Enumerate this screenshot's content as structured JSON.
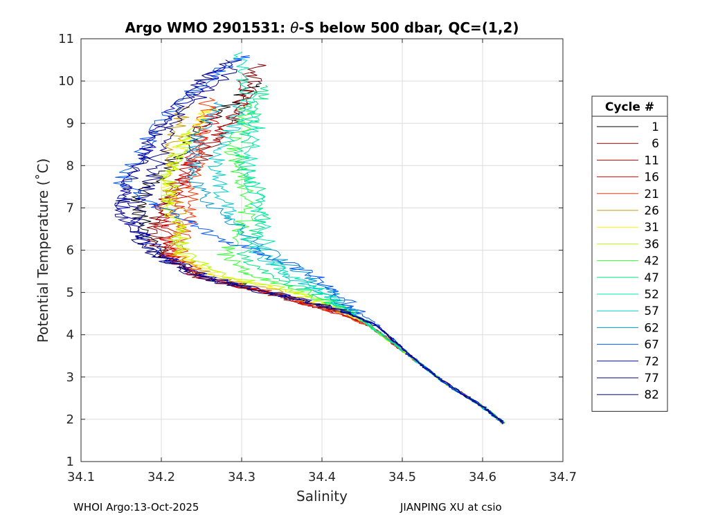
{
  "chart_data": {
    "type": "line",
    "title_prefix": "Argo WMO 2901531: ",
    "title_symbol": "θ",
    "title_suffix": "-S below 500 dbar,  QC=(1,2)",
    "xlabel": "Salinity",
    "ylabel": "Potential Temperature (˚C)",
    "xlim": [
      34.1,
      34.7
    ],
    "ylim": [
      1,
      11
    ],
    "xticks": [
      34.1,
      34.2,
      34.3,
      34.4,
      34.5,
      34.6,
      34.7
    ],
    "xtick_labels": [
      "34.1",
      "34.2",
      "34.3",
      "34.4",
      "34.5",
      "34.6",
      "34.7"
    ],
    "yticks": [
      1,
      2,
      3,
      4,
      5,
      6,
      7,
      8,
      9,
      10,
      11
    ],
    "ytick_labels": [
      "1",
      "2",
      "3",
      "4",
      "5",
      "6",
      "7",
      "8",
      "9",
      "10",
      "11"
    ],
    "grid": true,
    "legend_title": "Cycle #",
    "legend_position": "right-outside",
    "series": [
      {
        "name": "1",
        "color": "#000000",
        "points": [
          [
            34.627,
            1.9
          ],
          [
            34.6,
            2.3
          ],
          [
            34.55,
            2.9
          ],
          [
            34.51,
            3.5
          ],
          [
            34.47,
            4.2
          ],
          [
            34.42,
            4.6
          ],
          [
            34.34,
            5.0
          ],
          [
            34.25,
            5.4
          ],
          [
            34.2,
            5.9
          ],
          [
            34.18,
            6.5
          ],
          [
            34.17,
            7.1
          ],
          [
            34.19,
            7.6
          ],
          [
            34.22,
            8.2
          ],
          [
            34.25,
            8.9
          ],
          [
            34.29,
            9.5
          ],
          [
            34.32,
            10.0
          ]
        ]
      },
      {
        "name": "6",
        "color": "#800000",
        "points": [
          [
            34.627,
            1.9
          ],
          [
            34.6,
            2.3
          ],
          [
            34.55,
            2.9
          ],
          [
            34.51,
            3.5
          ],
          [
            34.46,
            4.2
          ],
          [
            34.41,
            4.6
          ],
          [
            34.33,
            5.0
          ],
          [
            34.24,
            5.4
          ],
          [
            34.2,
            5.9
          ],
          [
            34.19,
            6.5
          ],
          [
            34.2,
            7.1
          ],
          [
            34.23,
            7.7
          ],
          [
            34.26,
            8.4
          ],
          [
            34.29,
            9.1
          ],
          [
            34.31,
            9.8
          ],
          [
            34.32,
            10.4
          ]
        ]
      },
      {
        "name": "11",
        "color": "#b30000",
        "points": [
          [
            34.627,
            1.9
          ],
          [
            34.6,
            2.3
          ],
          [
            34.55,
            2.9
          ],
          [
            34.51,
            3.5
          ],
          [
            34.46,
            4.2
          ],
          [
            34.41,
            4.6
          ],
          [
            34.33,
            5.0
          ],
          [
            34.24,
            5.4
          ],
          [
            34.21,
            5.9
          ],
          [
            34.2,
            6.5
          ],
          [
            34.2,
            7.0
          ],
          [
            34.22,
            7.6
          ],
          [
            34.25,
            8.3
          ],
          [
            34.28,
            8.9
          ],
          [
            34.3,
            9.5
          ],
          [
            34.31,
            10.2
          ]
        ]
      },
      {
        "name": "16",
        "color": "#e60000",
        "points": [
          [
            34.627,
            1.9
          ],
          [
            34.6,
            2.3
          ],
          [
            34.55,
            2.9
          ],
          [
            34.51,
            3.5
          ],
          [
            34.46,
            4.2
          ],
          [
            34.41,
            4.6
          ],
          [
            34.33,
            5.0
          ],
          [
            34.24,
            5.4
          ],
          [
            34.21,
            5.9
          ],
          [
            34.21,
            6.5
          ],
          [
            34.22,
            7.1
          ],
          [
            34.23,
            7.7
          ],
          [
            34.24,
            8.3
          ],
          [
            34.26,
            8.9
          ],
          [
            34.26,
            9.4
          ]
        ]
      },
      {
        "name": "21",
        "color": "#ff3300",
        "points": [
          [
            34.627,
            1.9
          ],
          [
            34.6,
            2.3
          ],
          [
            34.55,
            2.9
          ],
          [
            34.51,
            3.5
          ],
          [
            34.46,
            4.2
          ],
          [
            34.41,
            4.6
          ],
          [
            34.34,
            5.0
          ],
          [
            34.25,
            5.4
          ],
          [
            34.22,
            5.9
          ],
          [
            34.23,
            6.5
          ],
          [
            34.24,
            7.1
          ],
          [
            34.24,
            7.7
          ],
          [
            34.25,
            8.3
          ],
          [
            34.25,
            8.9
          ],
          [
            34.26,
            9.6
          ]
        ]
      },
      {
        "name": "26",
        "color": "#cc9900",
        "points": [
          [
            34.627,
            1.9
          ],
          [
            34.6,
            2.3
          ],
          [
            34.55,
            2.9
          ],
          [
            34.51,
            3.5
          ],
          [
            34.46,
            4.2
          ],
          [
            34.42,
            4.6
          ],
          [
            34.35,
            5.0
          ],
          [
            34.26,
            5.4
          ],
          [
            34.22,
            5.9
          ],
          [
            34.22,
            6.5
          ],
          [
            34.22,
            7.1
          ],
          [
            34.21,
            7.7
          ],
          [
            34.21,
            8.3
          ],
          [
            34.22,
            8.9
          ],
          [
            34.23,
            9.4
          ]
        ]
      },
      {
        "name": "31",
        "color": "#ffee00",
        "points": [
          [
            34.627,
            1.9
          ],
          [
            34.6,
            2.3
          ],
          [
            34.55,
            2.9
          ],
          [
            34.51,
            3.5
          ],
          [
            34.46,
            4.2
          ],
          [
            34.42,
            4.6
          ],
          [
            34.36,
            5.0
          ],
          [
            34.27,
            5.4
          ],
          [
            34.22,
            5.9
          ],
          [
            34.22,
            6.5
          ],
          [
            34.21,
            7.1
          ],
          [
            34.21,
            7.7
          ],
          [
            34.22,
            8.3
          ],
          [
            34.24,
            8.9
          ],
          [
            34.26,
            9.4
          ]
        ]
      },
      {
        "name": "36",
        "color": "#b3ff00",
        "points": [
          [
            34.627,
            1.9
          ],
          [
            34.6,
            2.3
          ],
          [
            34.55,
            2.9
          ],
          [
            34.51,
            3.5
          ],
          [
            34.46,
            4.2
          ],
          [
            34.43,
            4.6
          ],
          [
            34.37,
            5.0
          ],
          [
            34.28,
            5.4
          ],
          [
            34.23,
            5.9
          ],
          [
            34.22,
            6.5
          ],
          [
            34.21,
            7.1
          ],
          [
            34.21,
            7.7
          ],
          [
            34.22,
            8.3
          ],
          [
            34.24,
            8.9
          ]
        ]
      },
      {
        "name": "42",
        "color": "#33ff33",
        "points": [
          [
            34.627,
            1.9
          ],
          [
            34.6,
            2.3
          ],
          [
            34.55,
            2.9
          ],
          [
            34.51,
            3.5
          ],
          [
            34.46,
            4.2
          ],
          [
            34.43,
            4.6
          ],
          [
            34.38,
            5.0
          ],
          [
            34.31,
            5.4
          ],
          [
            34.28,
            5.9
          ],
          [
            34.3,
            6.5
          ],
          [
            34.31,
            7.1
          ],
          [
            34.3,
            7.7
          ],
          [
            34.29,
            8.3
          ],
          [
            34.3,
            8.9
          ],
          [
            34.31,
            9.5
          ]
        ]
      },
      {
        "name": "47",
        "color": "#00e680",
        "points": [
          [
            34.627,
            1.9
          ],
          [
            34.6,
            2.3
          ],
          [
            34.55,
            2.9
          ],
          [
            34.51,
            3.5
          ],
          [
            34.46,
            4.2
          ],
          [
            34.43,
            4.6
          ],
          [
            34.39,
            5.0
          ],
          [
            34.33,
            5.4
          ],
          [
            34.3,
            5.9
          ],
          [
            34.32,
            6.5
          ],
          [
            34.33,
            7.1
          ],
          [
            34.31,
            7.7
          ],
          [
            34.3,
            8.3
          ],
          [
            34.31,
            8.9
          ],
          [
            34.32,
            9.5
          ],
          [
            34.33,
            9.9
          ]
        ]
      },
      {
        "name": "52",
        "color": "#00e6b3",
        "points": [
          [
            34.627,
            1.9
          ],
          [
            34.6,
            2.3
          ],
          [
            34.55,
            2.9
          ],
          [
            34.51,
            3.5
          ],
          [
            34.46,
            4.2
          ],
          [
            34.43,
            4.6
          ],
          [
            34.4,
            5.0
          ],
          [
            34.36,
            5.4
          ],
          [
            34.33,
            5.9
          ],
          [
            34.33,
            6.5
          ],
          [
            34.32,
            7.1
          ],
          [
            34.31,
            7.7
          ],
          [
            34.31,
            8.3
          ],
          [
            34.32,
            8.9
          ],
          [
            34.31,
            9.5
          ],
          [
            34.3,
            10.1
          ],
          [
            34.3,
            10.7
          ]
        ]
      },
      {
        "name": "57",
        "color": "#00cccc",
        "points": [
          [
            34.627,
            1.9
          ],
          [
            34.6,
            2.3
          ],
          [
            34.55,
            2.9
          ],
          [
            34.51,
            3.5
          ],
          [
            34.46,
            4.2
          ],
          [
            34.43,
            4.6
          ],
          [
            34.4,
            5.0
          ],
          [
            34.36,
            5.4
          ],
          [
            34.32,
            5.9
          ],
          [
            34.3,
            6.5
          ],
          [
            34.28,
            7.1
          ],
          [
            34.27,
            7.7
          ],
          [
            34.27,
            8.3
          ],
          [
            34.29,
            8.9
          ],
          [
            34.3,
            9.5
          ]
        ]
      },
      {
        "name": "62",
        "color": "#0099cc",
        "points": [
          [
            34.627,
            1.9
          ],
          [
            34.6,
            2.3
          ],
          [
            34.55,
            2.9
          ],
          [
            34.51,
            3.5
          ],
          [
            34.47,
            4.2
          ],
          [
            34.43,
            4.6
          ],
          [
            34.41,
            5.0
          ],
          [
            34.38,
            5.4
          ],
          [
            34.34,
            5.9
          ],
          [
            34.3,
            6.5
          ],
          [
            34.26,
            7.1
          ],
          [
            34.24,
            7.7
          ],
          [
            34.24,
            8.3
          ],
          [
            34.25,
            8.9
          ],
          [
            34.27,
            9.5
          ]
        ]
      },
      {
        "name": "67",
        "color": "#0055ff",
        "points": [
          [
            34.627,
            1.9
          ],
          [
            34.6,
            2.3
          ],
          [
            34.55,
            2.9
          ],
          [
            34.51,
            3.5
          ],
          [
            34.47,
            4.2
          ],
          [
            34.44,
            4.6
          ],
          [
            34.42,
            5.0
          ],
          [
            34.39,
            5.4
          ],
          [
            34.33,
            5.9
          ],
          [
            34.27,
            6.3
          ],
          [
            34.22,
            6.8
          ],
          [
            34.18,
            7.2
          ],
          [
            34.15,
            7.6
          ],
          [
            34.17,
            8.2
          ],
          [
            34.19,
            8.8
          ],
          [
            34.22,
            9.5
          ],
          [
            34.27,
            10.2
          ],
          [
            34.31,
            10.6
          ]
        ]
      },
      {
        "name": "72",
        "color": "#0000cc",
        "points": [
          [
            34.627,
            1.9
          ],
          [
            34.6,
            2.3
          ],
          [
            34.55,
            2.9
          ],
          [
            34.51,
            3.5
          ],
          [
            34.47,
            4.2
          ],
          [
            34.42,
            4.6
          ],
          [
            34.34,
            5.0
          ],
          [
            34.25,
            5.4
          ],
          [
            34.2,
            5.9
          ],
          [
            34.17,
            6.5
          ],
          [
            34.15,
            7.1
          ],
          [
            34.16,
            7.6
          ],
          [
            34.18,
            8.3
          ],
          [
            34.2,
            9.0
          ],
          [
            34.24,
            9.7
          ],
          [
            34.28,
            10.4
          ]
        ]
      },
      {
        "name": "77",
        "color": "#000080",
        "points": [
          [
            34.627,
            1.9
          ],
          [
            34.6,
            2.3
          ],
          [
            34.55,
            2.9
          ],
          [
            34.51,
            3.5
          ],
          [
            34.47,
            4.2
          ],
          [
            34.42,
            4.6
          ],
          [
            34.33,
            5.0
          ],
          [
            34.24,
            5.4
          ],
          [
            34.19,
            5.9
          ],
          [
            34.16,
            6.5
          ],
          [
            34.15,
            7.1
          ],
          [
            34.16,
            7.6
          ],
          [
            34.18,
            8.3
          ],
          [
            34.2,
            9.0
          ],
          [
            34.24,
            9.8
          ],
          [
            34.28,
            10.5
          ]
        ]
      },
      {
        "name": "82",
        "color": "#00008b",
        "points": [
          [
            34.627,
            1.9
          ],
          [
            34.6,
            2.3
          ],
          [
            34.55,
            2.9
          ],
          [
            34.51,
            3.5
          ],
          [
            34.47,
            4.2
          ],
          [
            34.42,
            4.6
          ],
          [
            34.33,
            5.0
          ],
          [
            34.24,
            5.4
          ],
          [
            34.19,
            5.9
          ],
          [
            34.17,
            6.5
          ],
          [
            34.17,
            7.1
          ],
          [
            34.19,
            7.7
          ],
          [
            34.2,
            8.4
          ],
          [
            34.22,
            9.1
          ],
          [
            34.26,
            9.8
          ],
          [
            34.3,
            10.5
          ]
        ]
      }
    ]
  },
  "footer": {
    "left": "WHOI Argo:13-Oct-2025",
    "right": "JIANPING XU at csio"
  }
}
